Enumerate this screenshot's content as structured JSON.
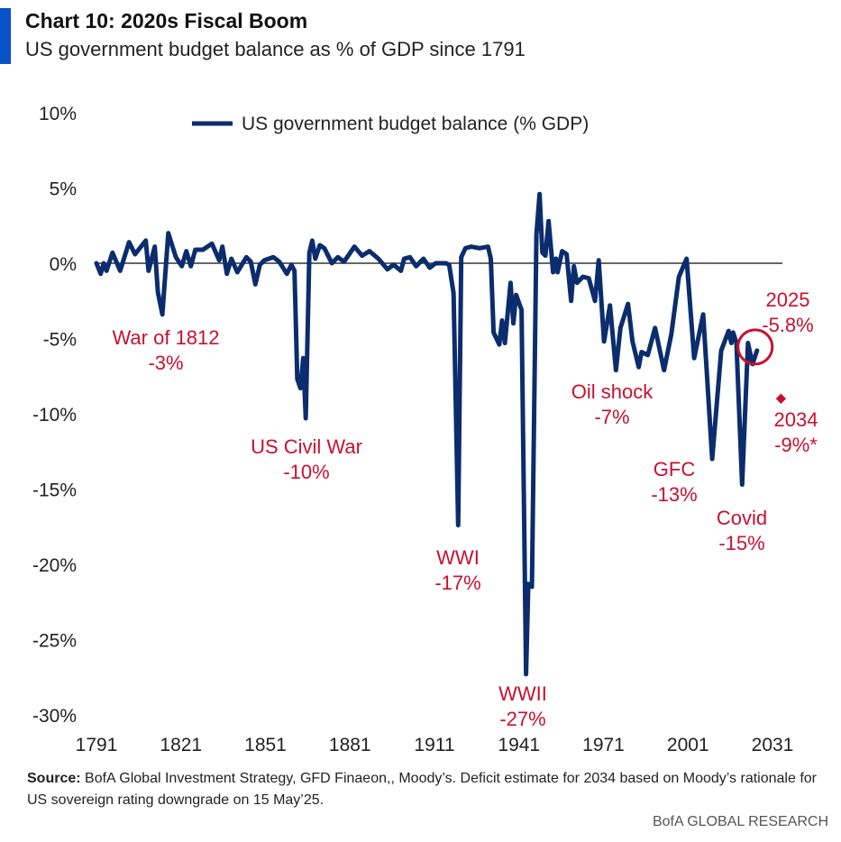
{
  "header": {
    "title": "Chart 10: 2020s Fiscal Boom",
    "subtitle": "US government budget balance as % of GDP since 1791"
  },
  "chart_data": {
    "type": "line",
    "title": "Chart 10: 2020s Fiscal Boom",
    "xlabel": "",
    "ylabel": "",
    "xlim": [
      1791,
      2031
    ],
    "ylim": [
      -30,
      10
    ],
    "grid": false,
    "legend_placement": "top-left",
    "x_ticks": [
      "1791",
      "1821",
      "1851",
      "1881",
      "1911",
      "1941",
      "1971",
      "2001",
      "2031"
    ],
    "y_ticks": [
      "10%",
      "5%",
      "0%",
      "-5%",
      "-10%",
      "-15%",
      "-20%",
      "-25%",
      "-30%"
    ],
    "y_tick_values": [
      10,
      5,
      0,
      -5,
      -10,
      -15,
      -20,
      -25,
      -30
    ],
    "x_tick_values": [
      1791,
      1821,
      1851,
      1881,
      1911,
      1941,
      1971,
      2001,
      2031
    ],
    "series": [
      {
        "name": "US government budget balance (% GDP)",
        "color": "#0b2d6e",
        "points": [
          [
            1791,
            0
          ],
          [
            1792.5,
            -0.7
          ],
          [
            1793.6,
            0
          ],
          [
            1794.6,
            -0.5
          ],
          [
            1796.7,
            0.7
          ],
          [
            1799.4,
            -0.5
          ],
          [
            1802.6,
            1.4
          ],
          [
            1804.7,
            0.6
          ],
          [
            1808.5,
            1.5
          ],
          [
            1809.5,
            -0.5
          ],
          [
            1811.7,
            1.1
          ],
          [
            1812.8,
            -1.9
          ],
          [
            1814.4,
            -3.4
          ],
          [
            1816.5,
            2
          ],
          [
            1819.2,
            0.4
          ],
          [
            1821.3,
            -0.2
          ],
          [
            1822.9,
            0.8
          ],
          [
            1824.5,
            -0.2
          ],
          [
            1826.1,
            0.9
          ],
          [
            1828.8,
            0.9
          ],
          [
            1832,
            1.3
          ],
          [
            1834.6,
            0.2
          ],
          [
            1835.7,
            1.1
          ],
          [
            1837.3,
            -0.7
          ],
          [
            1838.9,
            0.3
          ],
          [
            1841,
            -0.6
          ],
          [
            1844.2,
            0.4
          ],
          [
            1845.8,
            0.1
          ],
          [
            1847.4,
            -1.4
          ],
          [
            1849,
            -0.1
          ],
          [
            1850.6,
            0.2
          ],
          [
            1853.8,
            0.4
          ],
          [
            1855.9,
            0.1
          ],
          [
            1858.6,
            -0.7
          ],
          [
            1860.2,
            -0.1
          ],
          [
            1861.3,
            -0.5
          ],
          [
            1862.3,
            -7.7
          ],
          [
            1863.4,
            -8.3
          ],
          [
            1864.4,
            -6.3
          ],
          [
            1865.3,
            -10.3
          ],
          [
            1866.6,
            0.7
          ],
          [
            1867.6,
            1.5
          ],
          [
            1868.7,
            0.3
          ],
          [
            1870.3,
            1.2
          ],
          [
            1871.9,
            1
          ],
          [
            1874.6,
            0
          ],
          [
            1876.7,
            0.4
          ],
          [
            1878.9,
            0.1
          ],
          [
            1882.6,
            1.1
          ],
          [
            1885.3,
            0.5
          ],
          [
            1887.9,
            0.8
          ],
          [
            1891.1,
            0.3
          ],
          [
            1894.3,
            -0.4
          ],
          [
            1896.5,
            -0.1
          ],
          [
            1899.1,
            -0.5
          ],
          [
            1900.2,
            0.3
          ],
          [
            1902.3,
            0.4
          ],
          [
            1904.5,
            -0.2
          ],
          [
            1907.1,
            0.3
          ],
          [
            1909.3,
            -0.3
          ],
          [
            1911.4,
            0
          ],
          [
            1915.1,
            0
          ],
          [
            1916.2,
            -0.1
          ],
          [
            1917.8,
            -2
          ],
          [
            1919.4,
            -17.4
          ],
          [
            1920.5,
            0.4
          ],
          [
            1922,
            1
          ],
          [
            1924,
            1.1
          ],
          [
            1927,
            1
          ],
          [
            1930,
            1.1
          ],
          [
            1931,
            0.3
          ],
          [
            1932,
            -4.6
          ],
          [
            1934,
            -5.4
          ],
          [
            1935,
            -3.8
          ],
          [
            1936,
            -5.3
          ],
          [
            1938,
            -1.3
          ],
          [
            1939,
            -4
          ],
          [
            1940,
            -2.1
          ],
          [
            1941.9,
            -3.1
          ],
          [
            1943.5,
            -27.3
          ],
          [
            1944.3,
            -21.3
          ],
          [
            1945.6,
            -21.5
          ],
          [
            1947.2,
            1.9
          ],
          [
            1948.3,
            4.6
          ],
          [
            1949.3,
            0.7
          ],
          [
            1950.4,
            0.5
          ],
          [
            1951.5,
            2.8
          ],
          [
            1953.1,
            -0.6
          ],
          [
            1954.1,
            0.3
          ],
          [
            1954.7,
            -0.6
          ],
          [
            1956.3,
            0.8
          ],
          [
            1957.9,
            0.6
          ],
          [
            1959.5,
            -2.5
          ],
          [
            1960.5,
            -0.2
          ],
          [
            1961.6,
            -1.3
          ],
          [
            1963.7,
            -0.9
          ],
          [
            1965.8,
            -1
          ],
          [
            1968,
            -2.5
          ],
          [
            1969.3,
            0.2
          ],
          [
            1971.2,
            -5.2
          ],
          [
            1973.3,
            -2.8
          ],
          [
            1975.4,
            -7.1
          ],
          [
            1977,
            -4.3
          ],
          [
            1979.7,
            -2.7
          ],
          [
            1981.3,
            -5.2
          ],
          [
            1983.5,
            -6.9
          ],
          [
            1984.5,
            -5.9
          ],
          [
            1986.7,
            -6.1
          ],
          [
            1989.3,
            -4.3
          ],
          [
            1992.5,
            -7.1
          ],
          [
            1995.1,
            -4.7
          ],
          [
            1997.8,
            -0.9
          ],
          [
            2000.5,
            0.3
          ],
          [
            2003.2,
            -6.3
          ],
          [
            2006.4,
            -3.4
          ],
          [
            2009.6,
            -13
          ],
          [
            2012.8,
            -5.8
          ],
          [
            2015.4,
            -4.5
          ],
          [
            2016.4,
            -5.3
          ],
          [
            2017,
            -4.6
          ],
          [
            2018.2,
            -5.3
          ],
          [
            2020.2,
            -14.7
          ],
          [
            2022.3,
            -5.3
          ],
          [
            2023.9,
            -6.7
          ],
          [
            2025.5,
            -5.8
          ]
        ]
      }
    ],
    "projection": {
      "year": 2034,
      "value": -9,
      "color": "#c8102e"
    },
    "highlight": {
      "year": 2025,
      "value": -5.8,
      "color": "#c8102e"
    },
    "annotations": [
      {
        "label": "War of 1812",
        "value": "-3%"
      },
      {
        "label": "US Civil War",
        "value": "-10%"
      },
      {
        "label": "WWI",
        "value": "-17%"
      },
      {
        "label": "WWII",
        "value": "-27%"
      },
      {
        "label": "Oil shock",
        "value": "-7%"
      },
      {
        "label": "GFC",
        "value": "-13%"
      },
      {
        "label": "Covid",
        "value": "-15%"
      },
      {
        "label": "2025",
        "value": "-5.8%"
      },
      {
        "label": "2034",
        "value": "-9%*"
      }
    ]
  },
  "footer": {
    "source_label": "Source:",
    "source_text": " BofA Global Investment Strategy, GFD Finaeon,, Moody’s. Deficit estimate for 2034 based on Moody’s rationale for US sovereign rating downgrade on 15 May’25.",
    "brand": "BofA GLOBAL RESEARCH"
  }
}
